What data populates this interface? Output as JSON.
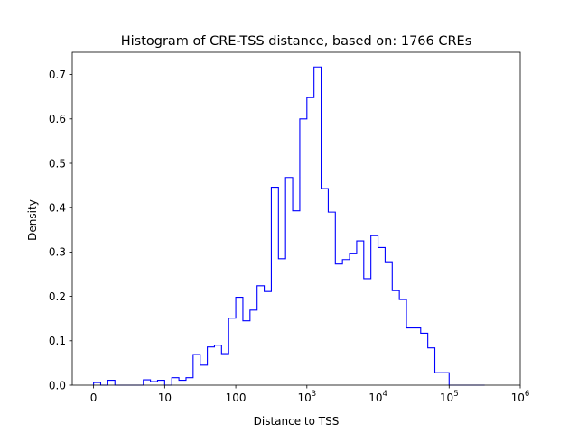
{
  "chart_data": {
    "type": "histogram",
    "title": "Histogram of CRE-TSS distance, based on: 1766 CREs",
    "xlabel": "Distance to TSS",
    "ylabel": "Density",
    "x_scale": "symlog",
    "xlim": [
      -0.3,
      6
    ],
    "ylim": [
      0,
      0.75
    ],
    "grid": false,
    "series_color": "#0000ff",
    "x_ticks": [
      {
        "value": 0,
        "label": "0"
      },
      {
        "value": 1,
        "label": "10"
      },
      {
        "value": 2,
        "label": "100"
      },
      {
        "value": 3,
        "base": "10",
        "exp": "3"
      },
      {
        "value": 4,
        "base": "10",
        "exp": "4"
      },
      {
        "value": 5,
        "base": "10",
        "exp": "5"
      },
      {
        "value": 6,
        "base": "10",
        "exp": "6"
      }
    ],
    "y_ticks": [
      "0.0",
      "0.1",
      "0.2",
      "0.3",
      "0.4",
      "0.5",
      "0.6",
      "0.7"
    ],
    "bin_edges": [
      0,
      0.1,
      0.2,
      0.3,
      0.4,
      0.5,
      0.6,
      0.7,
      0.8,
      0.9,
      1.0,
      1.1,
      1.2,
      1.3,
      1.4,
      1.5,
      1.6,
      1.7,
      1.8,
      1.9,
      2.0,
      2.1,
      2.2,
      2.3,
      2.4,
      2.5,
      2.6,
      2.7,
      2.8,
      2.9,
      3.0,
      3.1,
      3.2,
      3.3,
      3.4,
      3.5,
      3.6,
      3.7,
      3.8,
      3.9,
      4.0,
      4.1,
      4.2,
      4.3,
      4.4,
      4.5,
      4.6,
      4.7,
      4.8,
      4.9,
      5.0,
      5.1,
      5.2,
      5.3,
      5.4,
      5.5
    ],
    "densities": [
      0.006,
      0.0,
      0.011,
      0.0,
      0.0,
      0.0,
      0.0,
      0.012,
      0.008,
      0.011,
      0.0,
      0.017,
      0.011,
      0.017,
      0.069,
      0.045,
      0.086,
      0.09,
      0.071,
      0.151,
      0.198,
      0.145,
      0.169,
      0.224,
      0.211,
      0.446,
      0.285,
      0.468,
      0.393,
      0.6,
      0.648,
      0.717,
      0.443,
      0.39,
      0.273,
      0.283,
      0.296,
      0.325,
      0.24,
      0.337,
      0.31,
      0.278,
      0.213,
      0.193,
      0.129,
      0.129,
      0.117,
      0.084,
      0.028,
      0.028,
      0.0,
      0.0,
      0.0,
      0.0,
      0.0
    ]
  }
}
